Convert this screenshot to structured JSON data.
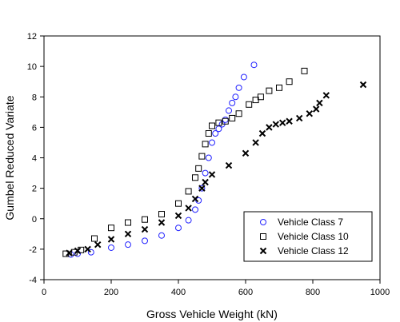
{
  "chart_data": {
    "type": "scatter",
    "title": "",
    "xlabel": "Gross Vehicle Weight (kN)",
    "ylabel": "Gumbel Reduced Variate",
    "xlim": [
      0,
      1000
    ],
    "ylim": [
      -4,
      12
    ],
    "xticks": [
      "0",
      "200",
      "400",
      "600",
      "800",
      "1000"
    ],
    "yticks": [
      "-4",
      "-2",
      "0",
      "2",
      "4",
      "6",
      "8",
      "10",
      "12"
    ],
    "grid": false,
    "legend_position": "lower-right",
    "series": [
      {
        "name": "Vehicle Class 7",
        "marker": "circle",
        "color": "#2222ff",
        "x": [
          80,
          100,
          140,
          200,
          250,
          300,
          350,
          400,
          430,
          450,
          460,
          470,
          480,
          490,
          500,
          510,
          520,
          530,
          540,
          550,
          560,
          570,
          580,
          595,
          625
        ],
        "y": [
          -2.35,
          -2.3,
          -2.2,
          -1.9,
          -1.7,
          -1.45,
          -1.1,
          -0.6,
          -0.1,
          0.6,
          1.2,
          2.0,
          3.0,
          4.0,
          5.0,
          5.6,
          5.9,
          6.2,
          6.5,
          7.1,
          7.6,
          8.0,
          8.6,
          9.3,
          10.1
        ]
      },
      {
        "name": "Vehicle Class 10",
        "marker": "square",
        "color": "#000000",
        "x": [
          65,
          90,
          110,
          150,
          200,
          250,
          300,
          350,
          400,
          430,
          450,
          460,
          470,
          480,
          490,
          500,
          520,
          540,
          560,
          580,
          610,
          630,
          645,
          670,
          700,
          730,
          775
        ],
        "y": [
          -2.3,
          -2.2,
          -2.05,
          -1.3,
          -0.6,
          -0.25,
          -0.05,
          0.3,
          1.0,
          1.8,
          2.7,
          3.3,
          4.1,
          4.9,
          5.6,
          6.1,
          6.3,
          6.4,
          6.6,
          6.9,
          7.5,
          7.8,
          8.0,
          8.4,
          8.6,
          9.0,
          9.7
        ]
      },
      {
        "name": "Vehicle Class 12",
        "marker": "x",
        "color": "#000000",
        "x": [
          75,
          100,
          130,
          160,
          200,
          250,
          300,
          350,
          400,
          430,
          450,
          470,
          480,
          500,
          550,
          600,
          630,
          650,
          670,
          690,
          710,
          730,
          760,
          790,
          810,
          820,
          840,
          950
        ],
        "y": [
          -2.25,
          -2.1,
          -2.0,
          -1.7,
          -1.35,
          -1.0,
          -0.7,
          -0.25,
          0.2,
          0.7,
          1.3,
          2.0,
          2.4,
          2.9,
          3.5,
          4.3,
          5.0,
          5.6,
          6.0,
          6.2,
          6.3,
          6.4,
          6.6,
          6.9,
          7.2,
          7.6,
          8.1,
          8.8
        ]
      }
    ]
  }
}
